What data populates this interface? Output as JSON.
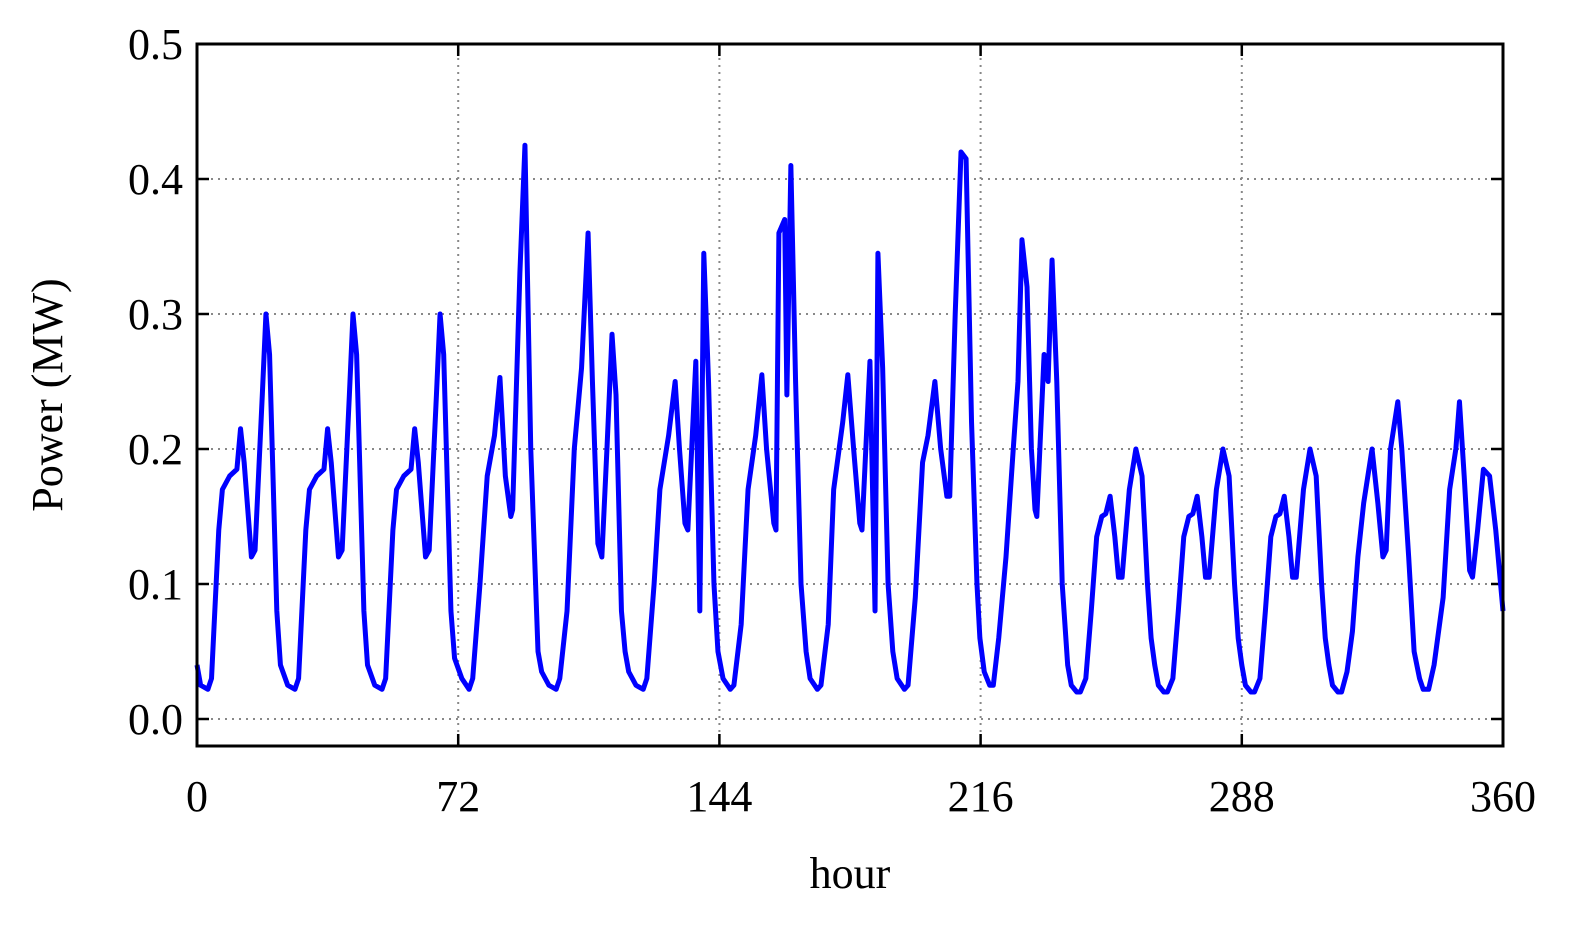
{
  "chart_data": {
    "type": "line",
    "xlabel": "hour",
    "ylabel": "Power (MW)",
    "color": "#0000ff",
    "grid": true,
    "xlim": [
      0,
      360
    ],
    "xticks": [
      0,
      72,
      144,
      216,
      288,
      360
    ],
    "ylim": [
      -0.02,
      0.5
    ],
    "yticks": [
      {
        "value": 0,
        "label": "0.0"
      },
      0.1,
      0.2,
      0.3,
      0.4,
      0.5
    ],
    "x": [
      0,
      1,
      3,
      4,
      6,
      7,
      9,
      11,
      12,
      13,
      15,
      16,
      18,
      19,
      20,
      22,
      23,
      25,
      27,
      28,
      30,
      31,
      33,
      35,
      36,
      37,
      39,
      40,
      42,
      43,
      44,
      46,
      47,
      49,
      51,
      52,
      54,
      55,
      57,
      59,
      60,
      61,
      63,
      64,
      66,
      67,
      68,
      70,
      71,
      73,
      75,
      76,
      78,
      80,
      82,
      83.5,
      85,
      86.5,
      87,
      89,
      90.4,
      92,
      94,
      95,
      97,
      99,
      100,
      102,
      104,
      106,
      107.8,
      109,
      110.5,
      111.6,
      113,
      114.4,
      115.5,
      117,
      118,
      119,
      121,
      123,
      124,
      126,
      127.6,
      130,
      131.8,
      133,
      134.5,
      135.3,
      137.5,
      138.6,
      139.7,
      141,
      142.5,
      143.6,
      145,
      147,
      148,
      150,
      151.9,
      154,
      155.7,
      157,
      159,
      159.6,
      160.4,
      162,
      162.6,
      163.7,
      165,
      166.5,
      167.9,
      169,
      171,
      172,
      174,
      175.5,
      178,
      179.4,
      181,
      182.7,
      183.3,
      185.5,
      186.9,
      187.7,
      189,
      190.5,
      191.8,
      193,
      195,
      196,
      198,
      200,
      201.5,
      203.4,
      205,
      206.7,
      207.5,
      209,
      210.6,
      212,
      213.5,
      215,
      215.8,
      217,
      218.5,
      219.5,
      221,
      223,
      225,
      226.3,
      227.4,
      228.8,
      230,
      231,
      231.5,
      233.5,
      234.6,
      235.7,
      237,
      238.5,
      240,
      241,
      242.5,
      243.5,
      245,
      246.5,
      248,
      249.4,
      250.5,
      251.7,
      253,
      254,
      255,
      257,
      258.8,
      260.5,
      262,
      263,
      264,
      265,
      266.5,
      267.5,
      269,
      270.5,
      272,
      273.4,
      274.5,
      275.7,
      277,
      278,
      279,
      281,
      282.8,
      284.5,
      286,
      287,
      288,
      289,
      290.5,
      291.5,
      293,
      294.5,
      296,
      297.4,
      298.5,
      299.7,
      301,
      302,
      303,
      305,
      306.8,
      308.5,
      310,
      311,
      312,
      313,
      314.5,
      315.5,
      317,
      318.5,
      320,
      321.6,
      323.9,
      325.5,
      326.9,
      327.8,
      329,
      331,
      332.1,
      334,
      335.5,
      337,
      338,
      339.5,
      341,
      342,
      343.5,
      345.3,
      347,
      348,
      349.3,
      350.8,
      351.6,
      353,
      354.6,
      356.3,
      358,
      360
    ],
    "values": [
      0.04,
      0.025,
      0.022,
      0.03,
      0.14,
      0.17,
      0.18,
      0.185,
      0.215,
      0.19,
      0.12,
      0.125,
      0.24,
      0.3,
      0.27,
      0.08,
      0.04,
      0.025,
      0.022,
      0.03,
      0.14,
      0.17,
      0.18,
      0.185,
      0.215,
      0.19,
      0.12,
      0.125,
      0.24,
      0.3,
      0.27,
      0.08,
      0.04,
      0.025,
      0.022,
      0.03,
      0.14,
      0.17,
      0.18,
      0.185,
      0.215,
      0.19,
      0.12,
      0.125,
      0.24,
      0.3,
      0.27,
      0.08,
      0.045,
      0.03,
      0.022,
      0.03,
      0.1,
      0.18,
      0.21,
      0.253,
      0.18,
      0.15,
      0.155,
      0.33,
      0.425,
      0.2,
      0.05,
      0.035,
      0.025,
      0.022,
      0.03,
      0.08,
      0.2,
      0.26,
      0.36,
      0.25,
      0.13,
      0.12,
      0.2,
      0.285,
      0.24,
      0.08,
      0.05,
      0.035,
      0.025,
      0.022,
      0.03,
      0.1,
      0.17,
      0.21,
      0.25,
      0.2,
      0.145,
      0.14,
      0.265,
      0.08,
      0.345,
      0.25,
      0.1,
      0.05,
      0.03,
      0.022,
      0.025,
      0.07,
      0.17,
      0.21,
      0.255,
      0.2,
      0.145,
      0.14,
      0.36,
      0.37,
      0.24,
      0.41,
      0.25,
      0.1,
      0.05,
      0.03,
      0.022,
      0.025,
      0.07,
      0.17,
      0.22,
      0.255,
      0.2,
      0.145,
      0.14,
      0.265,
      0.08,
      0.345,
      0.26,
      0.1,
      0.05,
      0.03,
      0.022,
      0.025,
      0.09,
      0.19,
      0.21,
      0.25,
      0.2,
      0.165,
      0.165,
      0.3,
      0.42,
      0.415,
      0.22,
      0.1,
      0.06,
      0.035,
      0.025,
      0.025,
      0.06,
      0.12,
      0.2,
      0.25,
      0.355,
      0.32,
      0.2,
      0.155,
      0.15,
      0.27,
      0.25,
      0.34,
      0.25,
      0.1,
      0.04,
      0.025,
      0.02,
      0.02,
      0.03,
      0.08,
      0.135,
      0.15,
      0.152,
      0.165,
      0.135,
      0.105,
      0.105,
      0.17,
      0.2,
      0.18,
      0.1,
      0.06,
      0.04,
      0.025,
      0.02,
      0.02,
      0.03,
      0.08,
      0.135,
      0.15,
      0.152,
      0.165,
      0.135,
      0.105,
      0.105,
      0.17,
      0.2,
      0.18,
      0.1,
      0.06,
      0.04,
      0.025,
      0.02,
      0.02,
      0.03,
      0.08,
      0.135,
      0.15,
      0.152,
      0.165,
      0.135,
      0.105,
      0.105,
      0.17,
      0.2,
      0.18,
      0.1,
      0.06,
      0.04,
      0.025,
      0.02,
      0.02,
      0.035,
      0.065,
      0.12,
      0.16,
      0.2,
      0.16,
      0.12,
      0.125,
      0.2,
      0.235,
      0.2,
      0.12,
      0.05,
      0.03,
      0.022,
      0.022,
      0.04,
      0.06,
      0.09,
      0.17,
      0.2,
      0.235,
      0.18,
      0.11,
      0.105,
      0.14,
      0.185,
      0.18,
      0.14,
      0.08
    ]
  }
}
